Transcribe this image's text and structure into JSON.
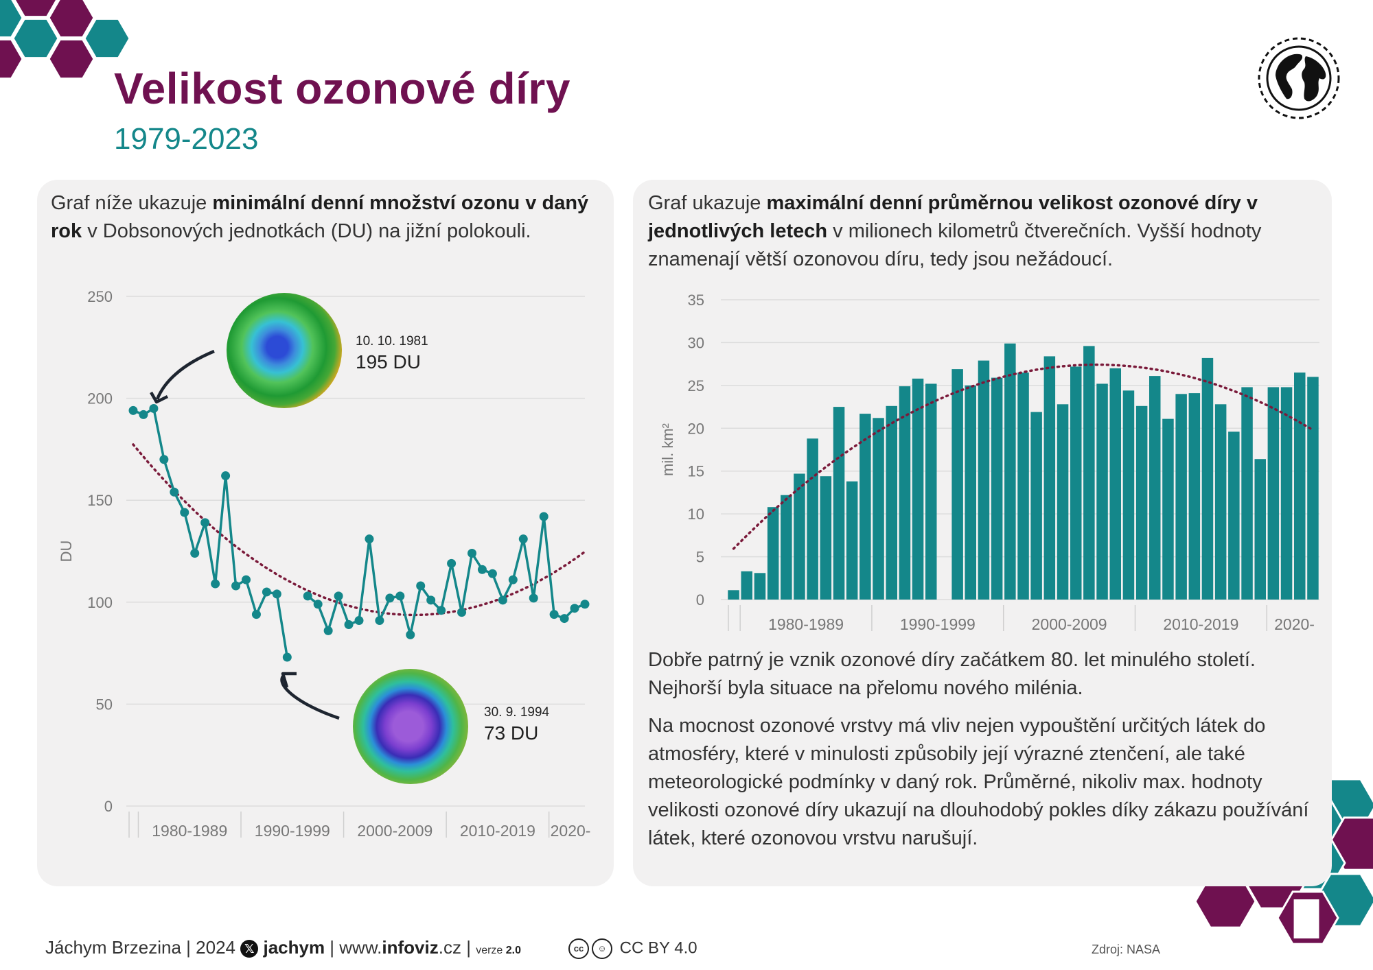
{
  "header": {
    "title": "Velikost ozonové díry",
    "subtitle": "1979-2023"
  },
  "left_panel": {
    "intro_pre": "Graf níže ukazuje ",
    "intro_bold": "minimální denní množství ozonu v daný rok",
    "intro_post": " v Dobsonových jednotkách (DU) na jižní polokouli.",
    "annotation_1981": {
      "date": "10. 10. 1981",
      "value": "195 DU"
    },
    "annotation_1994": {
      "date": "30. 9. 1994",
      "value": "73 DU"
    }
  },
  "right_panel": {
    "intro_pre": "Graf ukazuje ",
    "intro_bold": "maximální denní průměrnou velikost ozonové díry v jednotlivých letech",
    "intro_post": " v milionech kilometrů čtverečních. Vyšší hodnoty znamenají větší ozonovou díru, tedy jsou nežádoucí.",
    "para1": "Dobře patrný je vznik ozonové díry začátkem 80. let minulého století. Nejhorší byla situace na přelomu nového milénia.",
    "para2": "Na mocnost ozonové vrstvy má vliv nejen vypouštění určitých látek do atmosféry, které v minulosti způsobily její výrazné ztenčení, ale také meteorologické podmínky v daný rok. Průměrné, nikoliv max. hodnoty velikosti ozonové díry ukazují na dlouhodobý pokles díky zákazu používání látek, které ozonovou vrstvu narušují."
  },
  "footer": {
    "author": "Jáchym Brzezina | 2024 ",
    "x_icon": "x-logo-icon",
    "handle": "jachym",
    "web_pre": " | www.",
    "web_bold": "infoviz",
    "web_post": ".cz | ",
    "version_label": "verze ",
    "version": "2.0",
    "license": "CC BY 4.0",
    "source": "Zdroj: NASA"
  },
  "colors": {
    "title": "#6f1150",
    "accent": "#14878a",
    "trend": "#7a1a3a",
    "panel": "#f2f1f1"
  },
  "chart_data": [
    {
      "type": "line",
      "ylabel": "DU",
      "ylim": [
        0,
        250
      ],
      "yticks": [
        "0",
        "50",
        "100",
        "150",
        "200",
        "250"
      ],
      "xlim": [
        1979,
        2023
      ],
      "decade_labels": [
        "1980-1989",
        "1990-1999",
        "2000-2009",
        "2010-2019",
        "2020-"
      ],
      "gaps": [
        1995
      ],
      "grid": true,
      "trendline": "polynomial",
      "x": [
        1979,
        1980,
        1981,
        1982,
        1983,
        1984,
        1985,
        1986,
        1987,
        1988,
        1989,
        1990,
        1991,
        1992,
        1993,
        1994,
        1996,
        1997,
        1998,
        1999,
        2000,
        2001,
        2002,
        2003,
        2004,
        2005,
        2006,
        2007,
        2008,
        2009,
        2010,
        2011,
        2012,
        2013,
        2014,
        2015,
        2016,
        2017,
        2018,
        2019,
        2020,
        2021,
        2022,
        2023
      ],
      "values": [
        194,
        192,
        195,
        170,
        154,
        144,
        124,
        139,
        109,
        162,
        108,
        111,
        94,
        105,
        104,
        73,
        103,
        99,
        86,
        103,
        89,
        91,
        131,
        91,
        102,
        103,
        84,
        108,
        101,
        96,
        119,
        95,
        124,
        116,
        114,
        101,
        111,
        131,
        102,
        142,
        94,
        92,
        97,
        99
      ]
    },
    {
      "type": "bar",
      "ylabel": "mil. km²",
      "ylim": [
        0,
        35
      ],
      "yticks": [
        "0",
        "5",
        "10",
        "15",
        "20",
        "25",
        "30",
        "35"
      ],
      "xlim": [
        1979,
        2023
      ],
      "decade_labels": [
        "1980-1989",
        "1990-1999",
        "2000-2009",
        "2010-2019",
        "2020-"
      ],
      "gaps": [
        1995
      ],
      "grid": true,
      "trendline": "polynomial",
      "x": [
        1979,
        1980,
        1981,
        1982,
        1983,
        1984,
        1985,
        1986,
        1987,
        1988,
        1989,
        1990,
        1991,
        1992,
        1993,
        1994,
        1996,
        1997,
        1998,
        1999,
        2000,
        2001,
        2002,
        2003,
        2004,
        2005,
        2006,
        2007,
        2008,
        2009,
        2010,
        2011,
        2012,
        2013,
        2014,
        2015,
        2016,
        2017,
        2018,
        2019,
        2020,
        2021,
        2022,
        2023
      ],
      "values": [
        1.1,
        3.3,
        3.1,
        10.8,
        12.2,
        14.7,
        18.8,
        14.4,
        22.5,
        13.8,
        21.7,
        21.2,
        22.6,
        24.9,
        25.8,
        25.2,
        26.9,
        25.0,
        27.9,
        25.9,
        29.9,
        26.5,
        21.9,
        28.4,
        22.8,
        27.2,
        29.6,
        25.2,
        27.0,
        24.4,
        22.6,
        26.1,
        21.1,
        24.0,
        24.1,
        28.2,
        22.8,
        19.6,
        24.8,
        16.4,
        24.8,
        24.8,
        26.5,
        26.0
      ]
    }
  ]
}
